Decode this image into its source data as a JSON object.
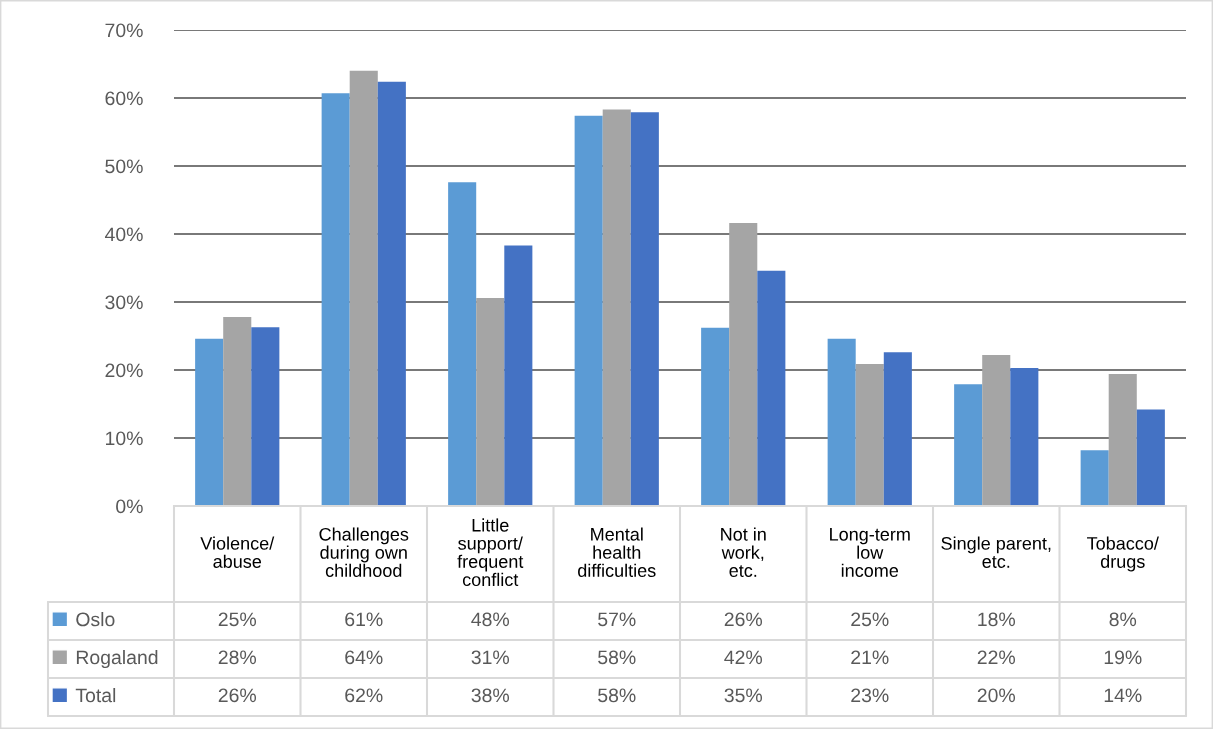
{
  "chart_data": {
    "type": "bar",
    "categories": [
      "Violence/\nabuse",
      "Challenges\nduring own\nchildhood",
      "Little\nsupport/\nfrequent\nconflict",
      "Mental\nhealth\ndifficulties",
      "Not in\nwork,\netc.",
      "Long-term\nlow\nincome",
      "Single parent,\netc.",
      "Tobacco/\ndrugs"
    ],
    "series": [
      {
        "name": "Oslo",
        "color": "#5b9bd5",
        "values": [
          24.6,
          60.7,
          47.6,
          57.4,
          26.2,
          24.6,
          17.9,
          8.2
        ],
        "value_labels": [
          "25%",
          "61%",
          "48%",
          "57%",
          "26%",
          "25%",
          "18%",
          "8%"
        ]
      },
      {
        "name": "Rogaland",
        "color": "#a5a5a5",
        "values": [
          27.8,
          64.0,
          30.6,
          58.3,
          41.6,
          20.9,
          22.2,
          19.4
        ],
        "value_labels": [
          "28%",
          "64%",
          "31%",
          "58%",
          "42%",
          "21%",
          "22%",
          "19%"
        ]
      },
      {
        "name": "Total",
        "color": "#4472c4",
        "values": [
          26.3,
          62.4,
          38.3,
          57.9,
          34.6,
          22.6,
          20.3,
          14.2
        ],
        "value_labels": [
          "26%",
          "62%",
          "38%",
          "58%",
          "35%",
          "23%",
          "20%",
          "14%"
        ]
      }
    ],
    "ylim": [
      0,
      70
    ],
    "yticks": [
      {
        "value": 0,
        "label": "0%"
      },
      {
        "value": 10,
        "label": "10%"
      },
      {
        "value": 20,
        "label": "20%"
      },
      {
        "value": 30,
        "label": "30%"
      },
      {
        "value": 40,
        "label": "40%"
      },
      {
        "value": 50,
        "label": "50%"
      },
      {
        "value": 60,
        "label": "60%"
      },
      {
        "value": 70,
        "label": "70%"
      }
    ],
    "grid": "y",
    "legend": "bottom"
  }
}
